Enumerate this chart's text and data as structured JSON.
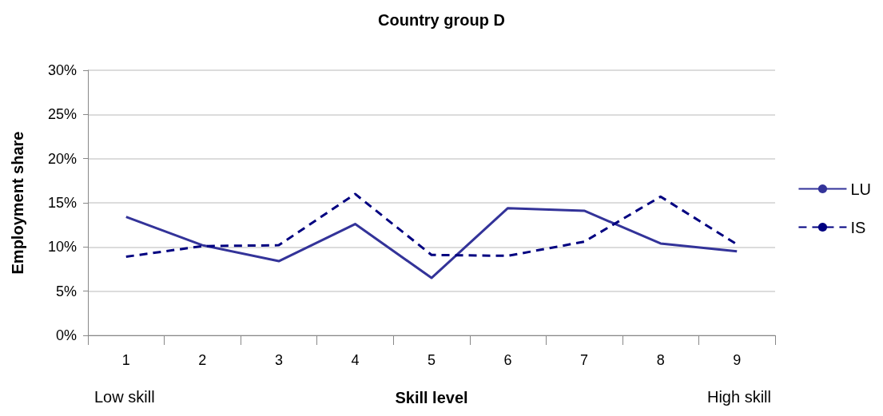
{
  "chart_data": {
    "type": "line",
    "title": "Country group D",
    "xlabel": "Skill level",
    "ylabel": "Employment share",
    "categories": [
      "1",
      "2",
      "3",
      "4",
      "5",
      "6",
      "7",
      "8",
      "9"
    ],
    "series": [
      {
        "name": "LU",
        "color": "#333399",
        "line_style": "solid",
        "values": [
          13.4,
          10.2,
          8.4,
          12.6,
          6.5,
          14.4,
          14.1,
          10.4,
          9.5
        ]
      },
      {
        "name": "IS",
        "color": "#000080",
        "line_style": "dashed",
        "values": [
          8.9,
          10.1,
          10.2,
          16.0,
          9.1,
          9.0,
          10.6,
          15.7,
          10.3
        ]
      }
    ],
    "ylim": [
      0,
      30
    ],
    "yticks": [
      {
        "value": 0,
        "label": "0%"
      },
      {
        "value": 5,
        "label": "5%"
      },
      {
        "value": 10,
        "label": "10%"
      },
      {
        "value": 15,
        "label": "15%"
      },
      {
        "value": 20,
        "label": "20%"
      },
      {
        "value": 25,
        "label": "25%"
      },
      {
        "value": 30,
        "label": "30%"
      }
    ],
    "grid": "y",
    "legend": "right",
    "marker": "none",
    "annotations": [
      "Low skill",
      "High skill"
    ]
  }
}
